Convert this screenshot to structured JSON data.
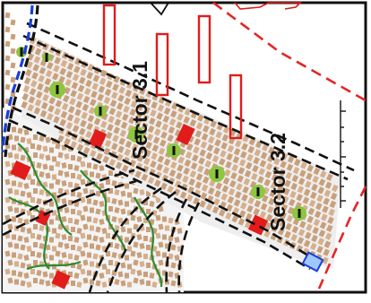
{
  "map": {
    "labels": {
      "sector_3_1": "Sector 3.1",
      "sector_3_2": "Sector 3.2"
    },
    "colors": {
      "plot_tan": "#c9a07c",
      "plot_tan_alt": "#d6b08e",
      "green_space": "#8dc63f",
      "green_outline": "#2e8b2e",
      "facility_red": "#e21b1b",
      "boundary_red": "#e32626",
      "road_dark": "#111111",
      "road_blue": "#1a3ed6",
      "neighborhood_bg": "#f3f3f3",
      "block_bg": "#e8e8e8"
    }
  }
}
